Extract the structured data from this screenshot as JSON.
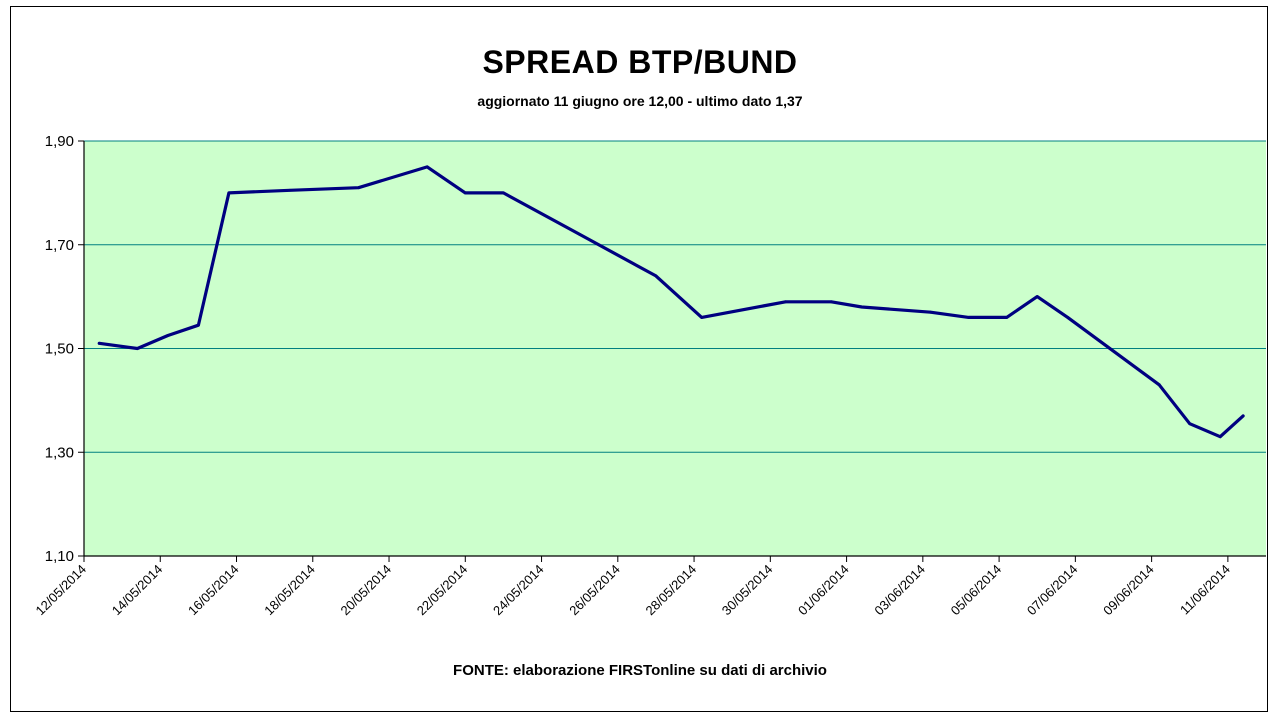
{
  "chart_data": {
    "type": "line",
    "title": "SPREAD BTP/BUND",
    "subtitle": "aggiornato 11 giugno ore 12,00 - ultimo dato 1,37",
    "source_note": "FONTE: elaborazione FIRSTonline su dati di archivio",
    "xlabel": "",
    "ylabel": "",
    "ylim": [
      1.1,
      1.9
    ],
    "yticks": [
      1.1,
      1.3,
      1.5,
      1.7,
      1.9
    ],
    "ytick_labels": [
      "1,10",
      "1,30",
      "1,50",
      "1,70",
      "1,90"
    ],
    "grid": "horizontal",
    "plot_background": "#ccffcc",
    "line_color": "#000080",
    "gridline_color": "#008080",
    "xtick_labels": [
      "12/05/2014",
      "14/05/2014",
      "16/05/2014",
      "18/05/2014",
      "20/05/2014",
      "22/05/2014",
      "24/05/2014",
      "26/05/2014",
      "28/05/2014",
      "30/05/2014",
      "01/06/2014",
      "03/06/2014",
      "05/06/2014",
      "07/06/2014",
      "09/06/2014",
      "11/06/2014"
    ],
    "x": [
      0.2,
      0.7,
      1.1,
      1.5,
      1.9,
      2.7,
      3.6,
      4.5,
      5.0,
      5.5,
      6.5,
      7.5,
      8.1,
      9.2,
      9.8,
      10.2,
      11.1,
      11.6,
      12.1,
      12.5,
      12.9,
      14.1,
      14.5,
      14.9,
      15.2
    ],
    "series": [
      {
        "values": [
          1.51,
          1.5,
          1.525,
          1.545,
          1.8,
          1.805,
          1.81,
          1.85,
          1.8,
          1.8,
          1.72,
          1.64,
          1.56,
          1.59,
          1.59,
          1.58,
          1.57,
          1.56,
          1.56,
          1.6,
          1.56,
          1.43,
          1.355,
          1.33,
          1.37
        ]
      }
    ]
  }
}
